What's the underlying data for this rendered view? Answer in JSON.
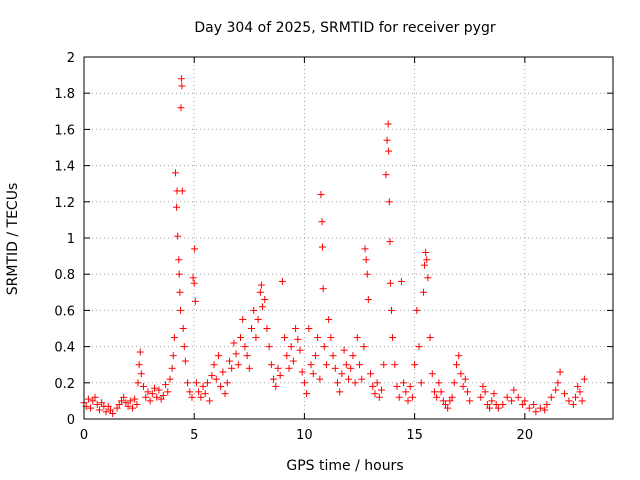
{
  "chart_data": {
    "type": "scatter",
    "title": "Day 304 of 2025, SRMTID for receiver pygr",
    "xlabel": "GPS time / hours",
    "ylabel": "SRMTID / TECUs",
    "xlim": [
      0,
      24
    ],
    "ylim": [
      0,
      2
    ],
    "xticks": [
      0,
      5,
      10,
      15,
      20
    ],
    "yticks": [
      0,
      0.2,
      0.4,
      0.6,
      0.8,
      1,
      1.2,
      1.4,
      1.6,
      1.8,
      2
    ],
    "xtick_labels": [
      "0",
      "5",
      "10",
      "15",
      "20"
    ],
    "ytick_labels": [
      "0",
      "0.2",
      "0.4",
      "0.6",
      "0.8",
      "1",
      "1.2",
      "1.4",
      "1.6",
      "1.8",
      "2"
    ],
    "grid": true,
    "marker": "+",
    "color": "#ff0000",
    "series": [
      {
        "name": "SRMTID",
        "points": [
          [
            0.0,
            0.09
          ],
          [
            0.1,
            0.07
          ],
          [
            0.2,
            0.11
          ],
          [
            0.3,
            0.06
          ],
          [
            0.4,
            0.1
          ],
          [
            0.5,
            0.12
          ],
          [
            0.6,
            0.08
          ],
          [
            0.7,
            0.05
          ],
          [
            0.8,
            0.09
          ],
          [
            0.9,
            0.07
          ],
          [
            1.0,
            0.04
          ],
          [
            1.1,
            0.07
          ],
          [
            1.2,
            0.05
          ],
          [
            1.3,
            0.03
          ],
          [
            1.5,
            0.06
          ],
          [
            1.6,
            0.08
          ],
          [
            1.7,
            0.1
          ],
          [
            1.8,
            0.12
          ],
          [
            1.9,
            0.09
          ],
          [
            2.0,
            0.07
          ],
          [
            2.1,
            0.1
          ],
          [
            2.2,
            0.06
          ],
          [
            2.3,
            0.11
          ],
          [
            2.4,
            0.08
          ],
          [
            2.45,
            0.2
          ],
          [
            2.5,
            0.3
          ],
          [
            2.55,
            0.37
          ],
          [
            2.6,
            0.25
          ],
          [
            2.7,
            0.18
          ],
          [
            2.8,
            0.12
          ],
          [
            2.9,
            0.15
          ],
          [
            3.0,
            0.1
          ],
          [
            3.1,
            0.14
          ],
          [
            3.2,
            0.17
          ],
          [
            3.3,
            0.12
          ],
          [
            3.4,
            0.16
          ],
          [
            3.5,
            0.11
          ],
          [
            3.6,
            0.13
          ],
          [
            3.7,
            0.19
          ],
          [
            3.8,
            0.15
          ],
          [
            3.9,
            0.22
          ],
          [
            4.0,
            0.28
          ],
          [
            4.05,
            0.35
          ],
          [
            4.1,
            0.45
          ],
          [
            4.15,
            1.36
          ],
          [
            4.2,
            1.17
          ],
          [
            4.22,
            1.26
          ],
          [
            4.25,
            1.01
          ],
          [
            4.3,
            0.88
          ],
          [
            4.32,
            0.8
          ],
          [
            4.35,
            0.7
          ],
          [
            4.38,
            0.6
          ],
          [
            4.4,
            1.72
          ],
          [
            4.42,
            1.88
          ],
          [
            4.44,
            1.84
          ],
          [
            4.46,
            1.26
          ],
          [
            4.5,
            0.5
          ],
          [
            4.55,
            0.4
          ],
          [
            4.6,
            0.32
          ],
          [
            4.7,
            0.2
          ],
          [
            4.8,
            0.15
          ],
          [
            4.9,
            0.12
          ],
          [
            4.95,
            0.78
          ],
          [
            5.0,
            0.75
          ],
          [
            5.02,
            0.94
          ],
          [
            5.05,
            0.65
          ],
          [
            5.1,
            0.2
          ],
          [
            5.2,
            0.15
          ],
          [
            5.3,
            0.12
          ],
          [
            5.4,
            0.18
          ],
          [
            5.5,
            0.14
          ],
          [
            5.6,
            0.2
          ],
          [
            5.7,
            0.1
          ],
          [
            5.8,
            0.24
          ],
          [
            5.9,
            0.3
          ],
          [
            6.0,
            0.22
          ],
          [
            6.1,
            0.35
          ],
          [
            6.2,
            0.18
          ],
          [
            6.3,
            0.26
          ],
          [
            6.4,
            0.14
          ],
          [
            6.5,
            0.2
          ],
          [
            6.6,
            0.32
          ],
          [
            6.7,
            0.28
          ],
          [
            6.8,
            0.42
          ],
          [
            6.9,
            0.36
          ],
          [
            7.0,
            0.3
          ],
          [
            7.1,
            0.45
          ],
          [
            7.2,
            0.55
          ],
          [
            7.3,
            0.4
          ],
          [
            7.4,
            0.35
          ],
          [
            7.5,
            0.28
          ],
          [
            7.6,
            0.5
          ],
          [
            7.7,
            0.6
          ],
          [
            7.8,
            0.45
          ],
          [
            7.9,
            0.55
          ],
          [
            8.0,
            0.7
          ],
          [
            8.05,
            0.74
          ],
          [
            8.1,
            0.62
          ],
          [
            8.2,
            0.66
          ],
          [
            8.3,
            0.5
          ],
          [
            8.4,
            0.4
          ],
          [
            8.5,
            0.3
          ],
          [
            8.6,
            0.22
          ],
          [
            8.7,
            0.18
          ],
          [
            8.8,
            0.28
          ],
          [
            8.9,
            0.24
          ],
          [
            9.0,
            0.76
          ],
          [
            9.1,
            0.45
          ],
          [
            9.2,
            0.35
          ],
          [
            9.3,
            0.28
          ],
          [
            9.4,
            0.4
          ],
          [
            9.5,
            0.32
          ],
          [
            9.6,
            0.5
          ],
          [
            9.7,
            0.44
          ],
          [
            9.8,
            0.38
          ],
          [
            9.9,
            0.26
          ],
          [
            10.0,
            0.2
          ],
          [
            10.1,
            0.14
          ],
          [
            10.2,
            0.5
          ],
          [
            10.3,
            0.3
          ],
          [
            10.4,
            0.25
          ],
          [
            10.5,
            0.35
          ],
          [
            10.6,
            0.45
          ],
          [
            10.7,
            0.22
          ],
          [
            10.75,
            1.24
          ],
          [
            10.8,
            1.09
          ],
          [
            10.82,
            0.95
          ],
          [
            10.85,
            0.72
          ],
          [
            10.9,
            0.4
          ],
          [
            11.0,
            0.3
          ],
          [
            11.1,
            0.55
          ],
          [
            11.2,
            0.45
          ],
          [
            11.3,
            0.35
          ],
          [
            11.4,
            0.28
          ],
          [
            11.5,
            0.2
          ],
          [
            11.6,
            0.15
          ],
          [
            11.7,
            0.25
          ],
          [
            11.8,
            0.38
          ],
          [
            11.9,
            0.3
          ],
          [
            12.0,
            0.22
          ],
          [
            12.1,
            0.28
          ],
          [
            12.2,
            0.35
          ],
          [
            12.3,
            0.2
          ],
          [
            12.4,
            0.45
          ],
          [
            12.5,
            0.3
          ],
          [
            12.6,
            0.22
          ],
          [
            12.7,
            0.4
          ],
          [
            12.75,
            0.94
          ],
          [
            12.8,
            0.88
          ],
          [
            12.85,
            0.8
          ],
          [
            12.9,
            0.66
          ],
          [
            13.0,
            0.25
          ],
          [
            13.1,
            0.18
          ],
          [
            13.2,
            0.14
          ],
          [
            13.3,
            0.2
          ],
          [
            13.4,
            0.12
          ],
          [
            13.5,
            0.16
          ],
          [
            13.6,
            0.3
          ],
          [
            13.7,
            1.35
          ],
          [
            13.75,
            1.54
          ],
          [
            13.8,
            1.63
          ],
          [
            13.82,
            1.48
          ],
          [
            13.85,
            1.2
          ],
          [
            13.88,
            0.98
          ],
          [
            13.9,
            0.75
          ],
          [
            13.95,
            0.6
          ],
          [
            14.0,
            0.45
          ],
          [
            14.1,
            0.3
          ],
          [
            14.2,
            0.18
          ],
          [
            14.3,
            0.12
          ],
          [
            14.4,
            0.76
          ],
          [
            14.5,
            0.2
          ],
          [
            14.6,
            0.15
          ],
          [
            14.7,
            0.1
          ],
          [
            14.8,
            0.18
          ],
          [
            14.9,
            0.12
          ],
          [
            15.0,
            0.3
          ],
          [
            15.1,
            0.6
          ],
          [
            15.2,
            0.4
          ],
          [
            15.3,
            0.2
          ],
          [
            15.4,
            0.7
          ],
          [
            15.45,
            0.85
          ],
          [
            15.5,
            0.92
          ],
          [
            15.55,
            0.88
          ],
          [
            15.6,
            0.78
          ],
          [
            15.7,
            0.45
          ],
          [
            15.8,
            0.25
          ],
          [
            15.9,
            0.15
          ],
          [
            16.0,
            0.12
          ],
          [
            16.1,
            0.2
          ],
          [
            16.2,
            0.15
          ],
          [
            16.3,
            0.1
          ],
          [
            16.4,
            0.08
          ],
          [
            16.5,
            0.06
          ],
          [
            16.6,
            0.1
          ],
          [
            16.7,
            0.12
          ],
          [
            16.8,
            0.2
          ],
          [
            16.9,
            0.3
          ],
          [
            17.0,
            0.35
          ],
          [
            17.1,
            0.25
          ],
          [
            17.2,
            0.18
          ],
          [
            17.3,
            0.22
          ],
          [
            17.4,
            0.15
          ],
          [
            17.5,
            0.1
          ],
          [
            18.0,
            0.12
          ],
          [
            18.1,
            0.18
          ],
          [
            18.2,
            0.15
          ],
          [
            18.3,
            0.08
          ],
          [
            18.4,
            0.06
          ],
          [
            18.5,
            0.1
          ],
          [
            18.6,
            0.14
          ],
          [
            18.7,
            0.08
          ],
          [
            18.8,
            0.06
          ],
          [
            19.0,
            0.08
          ],
          [
            19.2,
            0.12
          ],
          [
            19.4,
            0.1
          ],
          [
            19.5,
            0.16
          ],
          [
            19.7,
            0.12
          ],
          [
            19.9,
            0.08
          ],
          [
            20.0,
            0.1
          ],
          [
            20.2,
            0.06
          ],
          [
            20.4,
            0.08
          ],
          [
            20.5,
            0.04
          ],
          [
            20.7,
            0.06
          ],
          [
            20.9,
            0.05
          ],
          [
            21.0,
            0.08
          ],
          [
            21.2,
            0.12
          ],
          [
            21.4,
            0.16
          ],
          [
            21.5,
            0.2
          ],
          [
            21.6,
            0.26
          ],
          [
            21.8,
            0.14
          ],
          [
            22.0,
            0.1
          ],
          [
            22.2,
            0.08
          ],
          [
            22.3,
            0.12
          ],
          [
            22.4,
            0.18
          ],
          [
            22.5,
            0.15
          ],
          [
            22.6,
            0.1
          ],
          [
            22.7,
            0.22
          ]
        ]
      }
    ]
  }
}
